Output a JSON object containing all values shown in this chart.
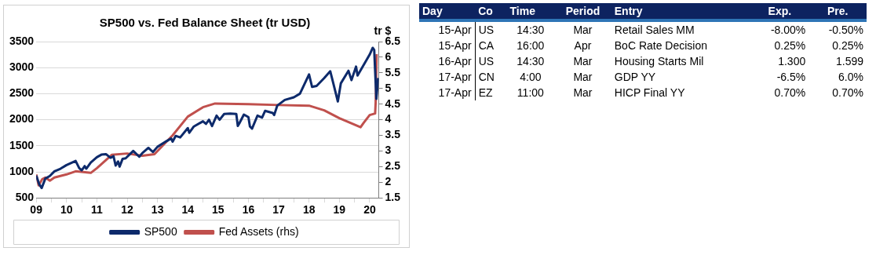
{
  "chart_data": [
    {
      "type": "line",
      "title": "SP500 vs. Fed Balance Sheet (tr USD)",
      "y2label": "tr $",
      "xlim": [
        2009,
        2020.3
      ],
      "xticks": [
        {
          "value": 2009,
          "label": "09"
        },
        {
          "value": 2009.5,
          "label": null
        },
        {
          "value": 2010,
          "label": "10"
        },
        {
          "value": 2010.5,
          "label": null
        },
        {
          "value": 2011,
          "label": "11"
        },
        {
          "value": 2011.5,
          "label": null
        },
        {
          "value": 2012,
          "label": "12"
        },
        {
          "value": 2012.5,
          "label": null
        },
        {
          "value": 2013,
          "label": "13"
        },
        {
          "value": 2013.5,
          "label": null
        },
        {
          "value": 2014,
          "label": "14"
        },
        {
          "value": 2014.5,
          "label": null
        },
        {
          "value": 2015,
          "label": "15"
        },
        {
          "value": 2015.5,
          "label": null
        },
        {
          "value": 2016,
          "label": "16"
        },
        {
          "value": 2016.5,
          "label": null
        },
        {
          "value": 2017,
          "label": "17"
        },
        {
          "value": 2017.5,
          "label": null
        },
        {
          "value": 2018,
          "label": "18"
        },
        {
          "value": 2018.5,
          "label": null
        },
        {
          "value": 2019,
          "label": "19"
        },
        {
          "value": 2019.5,
          "label": null
        },
        {
          "value": 2020,
          "label": "20"
        }
      ],
      "ylim": [
        500,
        3500
      ],
      "yticks": [
        500,
        1000,
        1500,
        2000,
        2500,
        3000,
        3500
      ],
      "y2lim": [
        1.5,
        6.5
      ],
      "y2ticks": [
        1.5,
        2,
        2.5,
        3,
        3.5,
        4,
        4.5,
        5,
        5.5,
        6,
        6.5
      ],
      "grid": "y",
      "legend": "bottom",
      "marker": "none",
      "line_style": "solid",
      "series": [
        {
          "name": "SP500",
          "color": "#0d2a6b",
          "x": [
            2009,
            2009.1,
            2009.18,
            2009.3,
            2009.45,
            2009.6,
            2009.8,
            2010,
            2010.3,
            2010.42,
            2010.5,
            2010.6,
            2010.65,
            2010.8,
            2011,
            2011.15,
            2011.3,
            2011.45,
            2011.55,
            2011.62,
            2011.7,
            2011.75,
            2011.85,
            2011.95,
            2012.2,
            2012.4,
            2012.5,
            2012.7,
            2012.85,
            2013,
            2013.3,
            2013.45,
            2013.5,
            2013.6,
            2013.75,
            2014,
            2014.05,
            2014.2,
            2014.5,
            2014.6,
            2014.7,
            2014.8,
            2014.95,
            2015.05,
            2015.2,
            2015.4,
            2015.6,
            2015.65,
            2015.7,
            2015.85,
            2016,
            2016.05,
            2016.12,
            2016.3,
            2016.45,
            2016.55,
            2016.8,
            2016.85,
            2016.95,
            2017.2,
            2017.5,
            2017.7,
            2018,
            2018.1,
            2018.25,
            2018.5,
            2018.7,
            2018.8,
            2018.95,
            2019.05,
            2019.3,
            2019.4,
            2019.55,
            2019.6,
            2019.75,
            2020,
            2020.1,
            2020.15,
            2020.22,
            2020.28
          ],
          "values": [
            930,
            760,
            690,
            870,
            920,
            1010,
            1060,
            1130,
            1210,
            1070,
            1030,
            1110,
            1060,
            1180,
            1280,
            1330,
            1340,
            1270,
            1300,
            1120,
            1200,
            1100,
            1250,
            1260,
            1400,
            1290,
            1360,
            1460,
            1380,
            1480,
            1590,
            1640,
            1580,
            1690,
            1660,
            1840,
            1750,
            1870,
            1970,
            1920,
            2000,
            1880,
            2080,
            2000,
            2110,
            2120,
            2110,
            1880,
            1930,
            2100,
            2050,
            1870,
            1830,
            2080,
            2040,
            2170,
            2130,
            2090,
            2270,
            2380,
            2430,
            2500,
            2870,
            2630,
            2650,
            2800,
            2930,
            2700,
            2350,
            2700,
            2940,
            2760,
            3020,
            2850,
            3000,
            3250,
            3380,
            3340,
            2400,
            2800
          ]
        },
        {
          "name": "Fed Assets (rhs)",
          "color": "#c0504d",
          "axis": "y2",
          "x": [
            2009,
            2009.08,
            2009.2,
            2009.3,
            2009.45,
            2009.6,
            2010,
            2010.3,
            2010.8,
            2011,
            2011.5,
            2012,
            2012.5,
            2012.9,
            2013.5,
            2014,
            2014.5,
            2014.9,
            2016,
            2017,
            2018,
            2018.5,
            2019,
            2019.7,
            2019.8,
            2020,
            2020.18,
            2020.2,
            2020.23
          ],
          "values": [
            2.25,
            1.9,
            2.1,
            2.15,
            2.05,
            2.15,
            2.25,
            2.35,
            2.3,
            2.45,
            2.88,
            2.92,
            2.85,
            2.9,
            3.5,
            4.1,
            4.4,
            4.52,
            4.5,
            4.47,
            4.45,
            4.3,
            4.05,
            3.76,
            3.9,
            4.15,
            4.2,
            4.6,
            6.1
          ]
        }
      ]
    },
    {
      "type": "other",
      "categories": [
        "Day",
        "Co",
        "Time",
        "Period",
        "Entry",
        "Exp.",
        "Pre."
      ],
      "cell_labels": [
        [
          "15-Apr",
          "US",
          "14:30",
          "Mar",
          "Retail Sales MM",
          "-8.00%",
          "-0.50%"
        ],
        [
          "15-Apr",
          "CA",
          "16:00",
          "Apr",
          "BoC Rate Decision",
          "0.25%",
          "0.25%"
        ],
        [
          "16-Apr",
          "US",
          "14:30",
          "Mar",
          "Housing Starts Mil",
          "1.300",
          "1.599"
        ],
        [
          "17-Apr",
          "CN",
          "4:00",
          "Mar",
          "GDP YY",
          "-6.5%",
          "6.0%"
        ],
        [
          "17-Apr",
          "EZ",
          "11:00",
          "Mar",
          "HICP Final YY",
          "0.70%",
          "0.70%"
        ]
      ]
    }
  ]
}
